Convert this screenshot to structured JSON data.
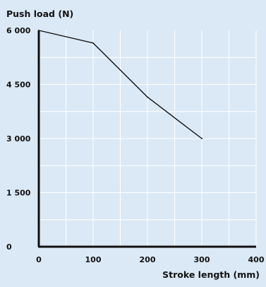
{
  "chart_data": {
    "type": "line",
    "title": "",
    "ylabel": "Push load (N)",
    "xlabel": "Stroke length (mm)",
    "x_ticks": [
      "0",
      "100",
      "200",
      "300",
      "400"
    ],
    "y_ticks": [
      "0",
      "1 500",
      "3 000",
      "4 500",
      "6 000"
    ],
    "x_tick_values": [
      0,
      100,
      200,
      300,
      400
    ],
    "y_tick_values": [
      0,
      1500,
      3000,
      4500,
      6000
    ],
    "xlim": [
      0,
      400
    ],
    "ylim": [
      0,
      6000
    ],
    "grid": true,
    "series": [
      {
        "x": [
          0,
          100,
          200,
          300
        ],
        "y": [
          6000,
          5650,
          4150,
          3000
        ]
      }
    ],
    "colors": {
      "background": "#dbe9f6",
      "grid": "#ffffff",
      "line": "#111111",
      "axis": "#111111"
    }
  }
}
